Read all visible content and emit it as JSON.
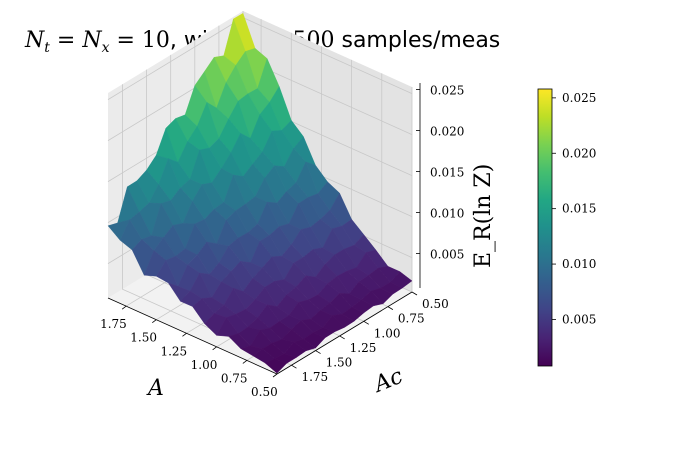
{
  "title": "N_t = N_x = 10, with M = 500 samples/meas",
  "colors": {
    "pane_left": "#ebebeb",
    "pane_right": "#e3e3e3",
    "pane_floor": "#f2f2f2",
    "grid": "#c8c8c8",
    "colormap": "viridis"
  },
  "chart_data": {
    "type": "surface",
    "xlabel": "A",
    "ylabel": "Ac",
    "zlabel": "E_R(ln Z)",
    "x_ticks": [
      "1.75",
      "1.50",
      "1.25",
      "1.00",
      "0.75",
      "0.50"
    ],
    "y_ticks": [
      "1.75",
      "1.50",
      "1.25",
      "1.00",
      "0.75",
      "0.50"
    ],
    "z_ticks": [
      "0.005",
      "0.010",
      "0.015",
      "0.020",
      "0.025"
    ],
    "colorbar_ticks": [
      "0.005",
      "0.010",
      "0.015",
      "0.020",
      "0.025"
    ],
    "x_range": [
      0.5,
      1.9
    ],
    "y_range": [
      0.5,
      1.9
    ],
    "z_range": [
      0.0008,
      0.0258
    ],
    "x": [
      0.5,
      0.6,
      0.7,
      0.8,
      0.9,
      1.0,
      1.1,
      1.2,
      1.3,
      1.4,
      1.5,
      1.6,
      1.7,
      1.8,
      1.9
    ],
    "y": [
      0.5,
      0.6,
      0.7,
      0.8,
      0.9,
      1.0,
      1.1,
      1.2,
      1.3,
      1.4,
      1.5,
      1.6,
      1.7,
      1.8,
      1.9
    ],
    "z_approx": "E_R increases with A and decreases with Ac; max ~0.025 at A=1.9, Ac=0.5; min ~0.001 at A=0.5, Ac=1.9"
  }
}
